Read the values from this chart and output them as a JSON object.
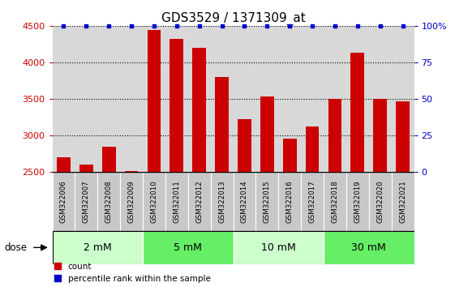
{
  "title": "GDS3529 / 1371309_at",
  "samples": [
    "GSM322006",
    "GSM322007",
    "GSM322008",
    "GSM322009",
    "GSM322010",
    "GSM322011",
    "GSM322012",
    "GSM322013",
    "GSM322014",
    "GSM322015",
    "GSM322016",
    "GSM322017",
    "GSM322018",
    "GSM322019",
    "GSM322020",
    "GSM322021"
  ],
  "counts": [
    2700,
    2600,
    2850,
    2520,
    4440,
    4320,
    4200,
    3800,
    3230,
    3540,
    2960,
    3130,
    3500,
    4130,
    3500,
    3470
  ],
  "percentiles": [
    100,
    100,
    100,
    100,
    100,
    100,
    100,
    100,
    100,
    100,
    100,
    100,
    100,
    100,
    100,
    100
  ],
  "bar_color": "#cc0000",
  "percentile_color": "#0000cc",
  "ylim_left": [
    2500,
    4500
  ],
  "ylim_right": [
    0,
    100
  ],
  "yticks_left": [
    2500,
    3000,
    3500,
    4000,
    4500
  ],
  "yticks_right": [
    0,
    25,
    50,
    75,
    100
  ],
  "ytick_labels_right": [
    "0",
    "25",
    "50",
    "75",
    "100%"
  ],
  "dose_groups": [
    {
      "label": "2 mM",
      "start": 0,
      "end": 3,
      "color": "#ccffcc"
    },
    {
      "label": "5 mM",
      "start": 4,
      "end": 7,
      "color": "#66ee66"
    },
    {
      "label": "10 mM",
      "start": 8,
      "end": 11,
      "color": "#ccffcc"
    },
    {
      "label": "30 mM",
      "start": 12,
      "end": 15,
      "color": "#66ee66"
    }
  ],
  "dose_label": "dose",
  "legend_count": "count",
  "legend_percentile": "percentile rank within the sample",
  "bg_color": "#ffffff",
  "plot_bg_color": "#d8d8d8",
  "sample_box_color": "#c8c8c8",
  "title_fontsize": 11,
  "tick_fontsize": 8,
  "axis_color_left": "#cc0000",
  "axis_color_right": "#0000cc",
  "bar_bottom": 2500
}
